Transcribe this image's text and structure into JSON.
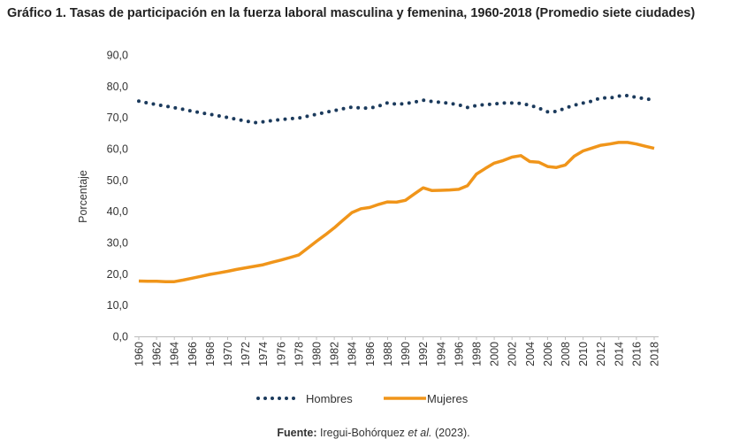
{
  "chart_data": {
    "type": "line",
    "title": "Gráfico 1. Tasas de participación en la fuerza laboral masculina y femenina, 1960-2018 (Promedio siete ciudades)",
    "xlabel": "",
    "ylabel": "Porcentaje",
    "ylim": [
      0,
      90
    ],
    "yticks": [
      "0,0",
      "10,0",
      "20,0",
      "30,0",
      "40,0",
      "50,0",
      "60,0",
      "70,0",
      "80,0",
      "90,0"
    ],
    "xlim": [
      1960,
      2018
    ],
    "xticks": [
      "1960",
      "1962",
      "1964",
      "1966",
      "1968",
      "1970",
      "1972",
      "1974",
      "1976",
      "1978",
      "1980",
      "1982",
      "1984",
      "1986",
      "1988",
      "1990",
      "1992",
      "1994",
      "1996",
      "1998",
      "2000",
      "2002",
      "2004",
      "2006",
      "2008",
      "2010",
      "2012",
      "2014",
      "2016",
      "2018"
    ],
    "grid": false,
    "legend_position": "bottom",
    "x": [
      1960,
      1961,
      1962,
      1963,
      1964,
      1965,
      1966,
      1967,
      1968,
      1969,
      1970,
      1971,
      1972,
      1973,
      1974,
      1975,
      1976,
      1977,
      1978,
      1979,
      1980,
      1981,
      1982,
      1983,
      1984,
      1985,
      1986,
      1987,
      1988,
      1989,
      1990,
      1991,
      1992,
      1993,
      1994,
      1995,
      1996,
      1997,
      1998,
      1999,
      2000,
      2001,
      2002,
      2003,
      2004,
      2005,
      2006,
      2007,
      2008,
      2009,
      2010,
      2011,
      2012,
      2013,
      2014,
      2015,
      2016,
      2017,
      2018
    ],
    "series": [
      {
        "name": "Hombres",
        "color": "#1b3a5c",
        "style": "dotted",
        "values": [
          75.2,
          74.6,
          74.1,
          73.6,
          73.1,
          72.6,
          72.0,
          71.5,
          71.0,
          70.5,
          70.0,
          69.4,
          68.9,
          68.3,
          68.6,
          69.0,
          69.3,
          69.6,
          69.8,
          70.4,
          71.0,
          71.6,
          72.2,
          72.8,
          73.3,
          73.0,
          73.0,
          73.6,
          74.7,
          74.2,
          74.4,
          74.9,
          75.5,
          75.1,
          74.8,
          74.5,
          74.0,
          73.2,
          73.8,
          74.1,
          74.3,
          74.6,
          74.6,
          74.5,
          73.9,
          73.0,
          71.8,
          71.9,
          73.0,
          73.9,
          74.6,
          75.2,
          76.3,
          76.2,
          76.8,
          77.0,
          76.4,
          76.0,
          75.5
        ]
      },
      {
        "name": "Mujeres",
        "color": "#f0951a",
        "style": "solid",
        "values": [
          17.7,
          17.6,
          17.6,
          17.5,
          17.5,
          18.0,
          18.6,
          19.2,
          19.8,
          20.3,
          20.8,
          21.4,
          21.9,
          22.4,
          22.9,
          23.7,
          24.4,
          25.2,
          26.0,
          28.2,
          30.4,
          32.5,
          34.7,
          37.2,
          39.6,
          40.8,
          41.2,
          42.2,
          43.0,
          42.9,
          43.5,
          45.5,
          47.5,
          46.6,
          46.7,
          46.8,
          47.0,
          48.2,
          51.9,
          53.7,
          55.4,
          56.2,
          57.3,
          57.8,
          55.9,
          55.7,
          54.3,
          54.0,
          54.8,
          57.6,
          59.3,
          60.2,
          61.1,
          61.5,
          62.0,
          62.0,
          61.5,
          60.8,
          60.1
        ]
      }
    ]
  },
  "source": {
    "label": "Fuente:",
    "text": "Iregui-Bohórquez ",
    "italic": "et al.",
    "year": " (2023)."
  }
}
